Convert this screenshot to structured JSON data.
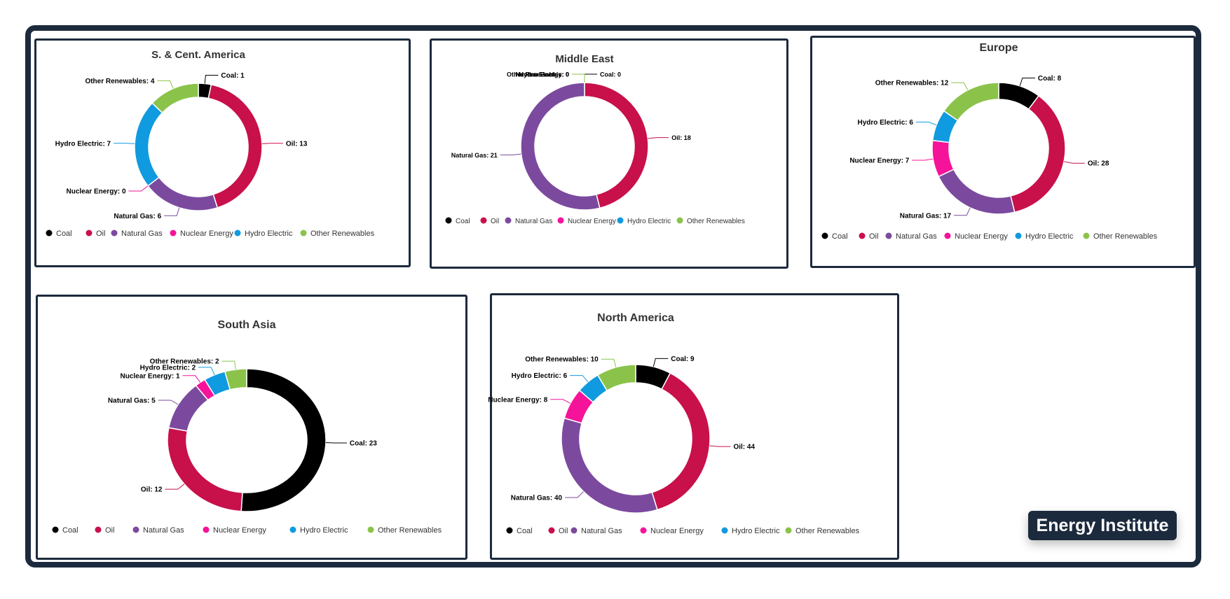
{
  "brand": {
    "label": "Energy Institute"
  },
  "colors": {
    "Coal": "#000000",
    "Oil": "#c8104a",
    "Natural Gas": "#7b4a9e",
    "Nuclear Energy": "#f5139a",
    "Hydro Electric": "#109adf",
    "Other Renewables": "#8bc34a"
  },
  "chart_data": [
    {
      "type": "pie",
      "subtype": "donut",
      "title": "S. & Cent. America",
      "categories": [
        "Coal",
        "Oil",
        "Natural Gas",
        "Nuclear Energy",
        "Hydro Electric",
        "Other Renewables"
      ],
      "values": [
        1,
        13,
        6,
        0,
        7,
        4
      ],
      "legend": "bottom"
    },
    {
      "type": "pie",
      "subtype": "donut",
      "title": "Middle East",
      "categories": [
        "Coal",
        "Oil",
        "Natural Gas",
        "Nuclear Energy",
        "Hydro Electric",
        "Other Renewables"
      ],
      "values": [
        0,
        18,
        21,
        0,
        0,
        0
      ],
      "legend": "bottom"
    },
    {
      "type": "pie",
      "subtype": "donut",
      "title": "Europe",
      "categories": [
        "Coal",
        "Oil",
        "Natural Gas",
        "Nuclear Energy",
        "Hydro Electric",
        "Other Renewables"
      ],
      "values": [
        8,
        28,
        17,
        7,
        6,
        12
      ],
      "legend": "bottom"
    },
    {
      "type": "pie",
      "subtype": "donut",
      "title": "South Asia",
      "categories": [
        "Coal",
        "Oil",
        "Natural Gas",
        "Nuclear Energy",
        "Hydro Electric",
        "Other Renewables"
      ],
      "values": [
        23,
        12,
        5,
        1,
        2,
        2
      ],
      "legend": "bottom"
    },
    {
      "type": "pie",
      "subtype": "donut",
      "title": "North America",
      "categories": [
        "Coal",
        "Oil",
        "Natural Gas",
        "Nuclear Energy",
        "Hydro Electric",
        "Other Renewables"
      ],
      "values": [
        9,
        44,
        40,
        8,
        6,
        10
      ],
      "legend": "bottom"
    }
  ]
}
